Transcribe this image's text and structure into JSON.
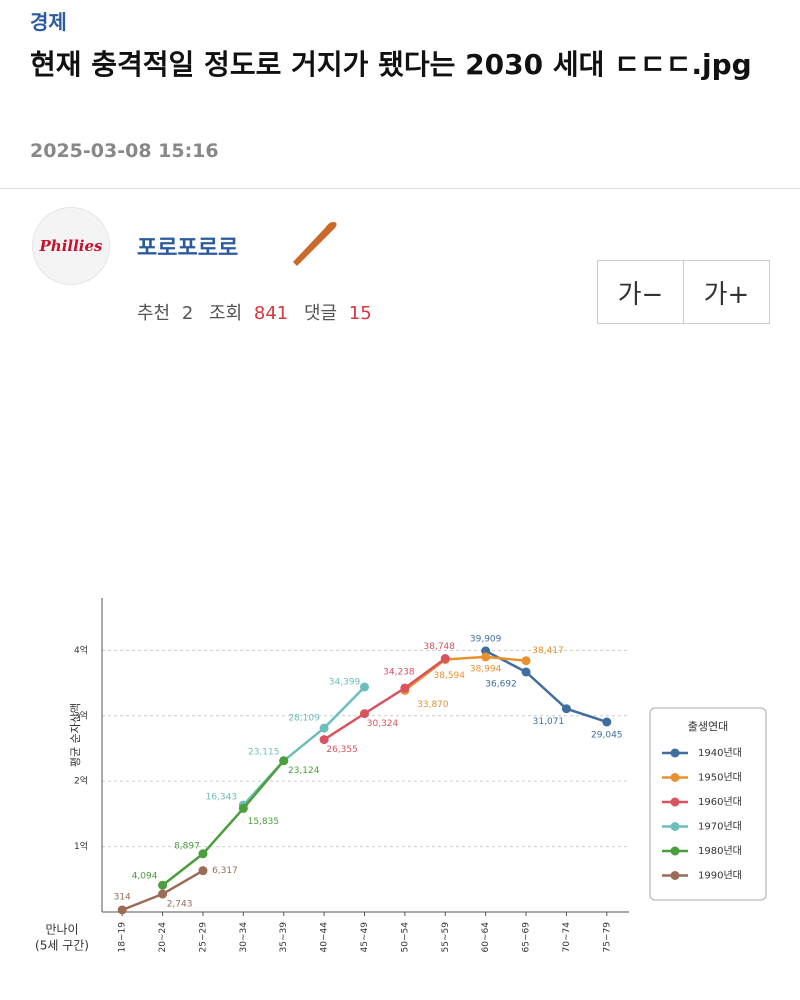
{
  "post": {
    "category": "경제",
    "title": "현재 충격적일 정도로 거지가 됐다는 2030 세대 ㄷㄷㄷ.jpg",
    "date": "2025-03-08 15:16",
    "avatar_text": "Phillies",
    "author": "포로포로로",
    "stats": [
      {
        "label": "추천",
        "count": "2"
      },
      {
        "label": "조회",
        "count": "841"
      },
      {
        "label": "댓글",
        "count": "15"
      }
    ],
    "font_buttons": [
      "가−",
      "가+"
    ]
  },
  "chart_data": {
    "type": "line",
    "y_label": "평균 순자산액",
    "x_label": [
      "만나이",
      "(5세 구간)"
    ],
    "categories": [
      "18~19",
      "20~24",
      "25~29",
      "30~34",
      "35~39",
      "40~44",
      "45~49",
      "50~54",
      "55~59",
      "60~64",
      "65~69",
      "70~74",
      "75~79"
    ],
    "ylim": [
      0,
      48000
    ],
    "yticks": [
      {
        "value": 10000,
        "label": "1억"
      },
      {
        "value": 20000,
        "label": "2억"
      },
      {
        "value": 30000,
        "label": "3억"
      },
      {
        "value": 40000,
        "label": "4억"
      }
    ],
    "grid": true,
    "legend_title": "출생연대",
    "legend": "right",
    "series": [
      {
        "name": "1940년대",
        "color": "#3f6e9e",
        "values": [
          null,
          null,
          null,
          null,
          null,
          null,
          null,
          null,
          null,
          39909,
          36692,
          31071,
          29045
        ],
        "value_labels": [
          null,
          null,
          null,
          null,
          null,
          null,
          null,
          null,
          null,
          "39,909",
          "36,692",
          "31,071",
          "29,045"
        ]
      },
      {
        "name": "1950년대",
        "color": "#e8912e",
        "values": [
          null,
          null,
          null,
          null,
          null,
          null,
          null,
          33870,
          38594,
          38994,
          38417,
          null,
          null
        ],
        "value_labels": [
          null,
          null,
          null,
          null,
          null,
          null,
          null,
          "33,870",
          "38,594",
          "38,994",
          "38,417",
          null,
          null
        ]
      },
      {
        "name": "1960년대",
        "color": "#d9535e",
        "values": [
          null,
          null,
          null,
          null,
          null,
          26355,
          30324,
          34238,
          38748,
          null,
          null,
          null,
          null
        ],
        "value_labels": [
          null,
          null,
          null,
          null,
          null,
          "26,355",
          "30,324",
          "34,238",
          "38,748",
          null,
          null,
          null,
          null
        ]
      },
      {
        "name": "1970년대",
        "color": "#6bbfb8",
        "values": [
          null,
          null,
          null,
          16343,
          23115,
          28109,
          34399,
          null,
          null,
          null,
          null,
          null,
          null
        ],
        "value_labels": [
          null,
          null,
          null,
          "16,343",
          "23,115",
          "28,109",
          "34,399",
          null,
          null,
          null,
          null,
          null,
          null
        ]
      },
      {
        "name": "1980년대",
        "color": "#4a9e3b",
        "values": [
          null,
          4094,
          8897,
          15835,
          23124,
          null,
          null,
          null,
          null,
          null,
          null,
          null,
          null
        ],
        "value_labels": [
          null,
          "4,094",
          "8,897",
          "15,835",
          "23,124",
          null,
          null,
          null,
          null,
          null,
          null,
          null,
          null
        ]
      },
      {
        "name": "1990년대",
        "color": "#9a6b55",
        "values": [
          314,
          2743,
          6317,
          null,
          null,
          null,
          null,
          null,
          null,
          null,
          null,
          null,
          null
        ],
        "value_labels": [
          "314",
          "2,743",
          "6,317",
          null,
          null,
          null,
          null,
          null,
          null,
          null,
          null,
          null,
          null
        ]
      }
    ]
  }
}
